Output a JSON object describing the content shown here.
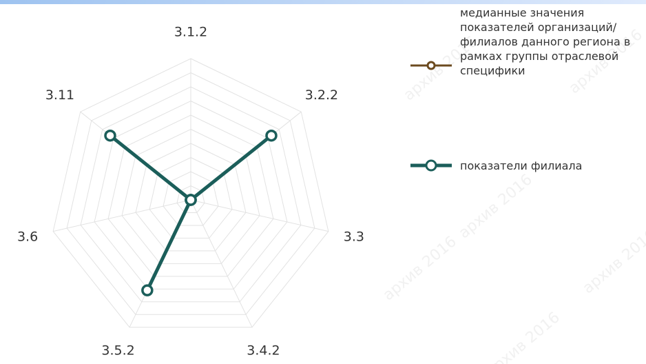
{
  "chart_data": {
    "type": "radar",
    "categories": [
      "3.1.2",
      "3.2.2",
      "3.3",
      "3.4.2",
      "3.5.2",
      "3.6",
      "3.11"
    ],
    "rlim": [
      0,
      10
    ],
    "rticks": [
      0,
      1,
      2,
      3,
      4,
      5,
      6,
      7,
      8,
      9,
      10
    ],
    "grid": true,
    "legend": "right",
    "series": [
      {
        "name": "медианные значения показателей организаций/филиалов данного региона в рамках группы отраслевой специфики",
        "color": "#6b4a1f",
        "values": [
          null,
          null,
          null,
          null,
          null,
          null,
          null
        ]
      },
      {
        "name": "показатели филиала",
        "color": "#1b5e5a",
        "values": [
          0,
          7.3,
          0,
          0,
          7.1,
          0,
          7.3
        ]
      }
    ],
    "watermark": "архив 2016"
  }
}
